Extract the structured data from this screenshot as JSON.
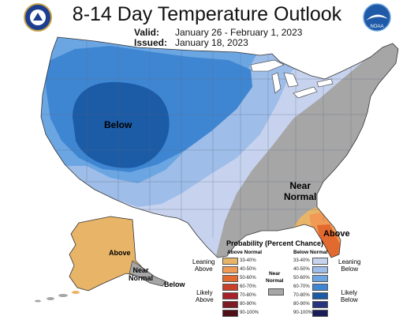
{
  "header": {
    "title": "8-14 Day Temperature Outlook",
    "valid_label": "Valid:",
    "valid_value": "January 26 - February 1, 2023",
    "issued_label": "Issued:",
    "issued_value": "January 18, 2023",
    "left_logo": "noaa-seal-icon",
    "right_logo": "noaa-bird-icon",
    "right_logo_text": "NOAA"
  },
  "map_labels": {
    "conus_below": "Below",
    "conus_near_normal": "Near\nNormal",
    "florida_above": "Above",
    "alaska_above": "Above",
    "alaska_near_normal": "Near\nNormal",
    "alaska_below": "Below"
  },
  "colors": {
    "below_33_40": "#c7d3ee",
    "below_40_50": "#9ebde9",
    "below_50_60": "#6ba6e3",
    "below_60_70": "#3f86d2",
    "below_70_80": "#1c5ba6",
    "above_33_40": "#e8b467",
    "above_40_50": "#f09a56",
    "above_50_60": "#e36a2f",
    "near_normal": "#a6a6a6",
    "water": "#ffffff"
  },
  "legend": {
    "title": "Probability (Percent Chance)",
    "above_header": "Above Normal",
    "below_header": "Below Normal",
    "near_normal": "Near\nNormal",
    "leaning_above": "Leaning\nAbove",
    "likely_above": "Likely\nAbove",
    "leaning_below": "Leaning\nBelow",
    "likely_below": "Likely\nBelow",
    "above_rows": [
      {
        "label": "33-40%",
        "color": "#e8b467"
      },
      {
        "label": "40-50%",
        "color": "#f09a56"
      },
      {
        "label": "50-60%",
        "color": "#e36a2f"
      },
      {
        "label": "60-70%",
        "color": "#c8402a"
      },
      {
        "label": "70-80%",
        "color": "#a8202a"
      },
      {
        "label": "80-90%",
        "color": "#7d1a24"
      },
      {
        "label": "90-100%",
        "color": "#4f0f17"
      }
    ],
    "below_rows": [
      {
        "label": "33-40%",
        "color": "#c7d3ee"
      },
      {
        "label": "40-50%",
        "color": "#9ebde9"
      },
      {
        "label": "50-60%",
        "color": "#6ba6e3"
      },
      {
        "label": "60-70%",
        "color": "#3f86d2"
      },
      {
        "label": "70-80%",
        "color": "#1c5ba6"
      },
      {
        "label": "80-90%",
        "color": "#27337e"
      },
      {
        "label": "90-100%",
        "color": "#1a1d57"
      }
    ],
    "near_normal_color": "#a6a6a6"
  }
}
